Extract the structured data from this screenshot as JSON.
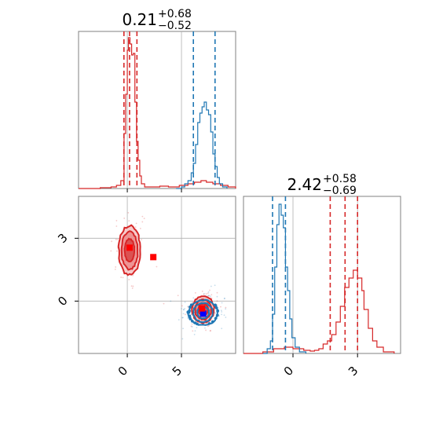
{
  "chart_data": [
    {
      "type": "histogram",
      "panel": "top-left",
      "title": {
        "value": "0.21",
        "plus": "+0.68",
        "minus": "−0.52"
      },
      "xlim": [
        -4.5,
        10
      ],
      "grid": true,
      "colors": {
        "red": "#d62728",
        "blue": "#1f77b4"
      },
      "series": [
        {
          "color": "#d62728",
          "bins": [
            [
              -4.5,
              0
            ],
            [
              -2.5,
              0.005
            ],
            [
              -1.5,
              0.01
            ],
            [
              -1.0,
              0.02
            ],
            [
              -0.6,
              0.05
            ],
            [
              -0.3,
              0.35
            ],
            [
              -0.15,
              0.6
            ],
            [
              0.0,
              0.88
            ],
            [
              0.1,
              0.96
            ],
            [
              0.25,
              0.92
            ],
            [
              0.4,
              0.85
            ],
            [
              0.55,
              0.86
            ],
            [
              0.7,
              0.55
            ],
            [
              0.85,
              0.3
            ],
            [
              1.0,
              0.18
            ],
            [
              1.15,
              0.08
            ],
            [
              1.3,
              0.03
            ],
            [
              1.6,
              0.01
            ],
            [
              2.2,
              0.01
            ],
            [
              3.0,
              0.015
            ],
            [
              3.8,
              0.01
            ],
            [
              4.8,
              0.02
            ],
            [
              5.6,
              0.03
            ],
            [
              6.2,
              0.04
            ],
            [
              6.8,
              0.05
            ],
            [
              7.3,
              0.04
            ],
            [
              7.9,
              0.03
            ],
            [
              8.6,
              0.02
            ],
            [
              9.3,
              0.01
            ],
            [
              10,
              0
            ]
          ],
          "quantiles": [
            -0.31,
            0.21,
            0.89
          ]
        },
        {
          "color": "#1f77b4",
          "bins": [
            [
              4.5,
              0
            ],
            [
              5.0,
              0.01
            ],
            [
              5.3,
              0.03
            ],
            [
              5.6,
              0.05
            ],
            [
              5.9,
              0.1
            ],
            [
              6.1,
              0.16
            ],
            [
              6.3,
              0.28
            ],
            [
              6.5,
              0.42
            ],
            [
              6.7,
              0.48
            ],
            [
              6.9,
              0.52
            ],
            [
              7.1,
              0.55
            ],
            [
              7.3,
              0.5
            ],
            [
              7.5,
              0.47
            ],
            [
              7.7,
              0.36
            ],
            [
              7.9,
              0.22
            ],
            [
              8.1,
              0.14
            ],
            [
              8.3,
              0.07
            ],
            [
              8.5,
              0.03
            ],
            [
              8.8,
              0.01
            ],
            [
              9.2,
              0
            ]
          ],
          "quantiles": [
            6.1,
            8.1
          ]
        }
      ]
    },
    {
      "type": "histogram",
      "panel": "bottom-right",
      "title": {
        "value": "2.42",
        "plus": "+0.58",
        "minus": "−0.69"
      },
      "xlim": [
        -2.3,
        5.0
      ],
      "xticks": [
        0,
        3
      ],
      "xtick_labels": [
        "0",
        "3"
      ],
      "grid": true,
      "colors": {
        "red": "#d62728",
        "blue": "#1f77b4"
      },
      "series": [
        {
          "color": "#d62728",
          "bins": [
            [
              -2.3,
              0
            ],
            [
              -1.4,
              0.01
            ],
            [
              -0.9,
              0.03
            ],
            [
              -0.4,
              0.04
            ],
            [
              0.0,
              0.03
            ],
            [
              0.5,
              0.02
            ],
            [
              0.8,
              0.015
            ],
            [
              1.0,
              0.02
            ],
            [
              1.2,
              0.03
            ],
            [
              1.4,
              0.06
            ],
            [
              1.6,
              0.08
            ],
            [
              1.8,
              0.12
            ],
            [
              2.0,
              0.2
            ],
            [
              2.2,
              0.3
            ],
            [
              2.4,
              0.42
            ],
            [
              2.6,
              0.48
            ],
            [
              2.8,
              0.53
            ],
            [
              3.0,
              0.48
            ],
            [
              3.2,
              0.4
            ],
            [
              3.3,
              0.28
            ],
            [
              3.5,
              0.16
            ],
            [
              3.7,
              0.08
            ],
            [
              3.9,
              0.04
            ],
            [
              4.2,
              0.01
            ],
            [
              4.7,
              0
            ]
          ],
          "quantiles": [
            1.73,
            2.42,
            3.0
          ]
        },
        {
          "color": "#1f77b4",
          "bins": [
            [
              -1.4,
              0
            ],
            [
              -1.2,
              0.03
            ],
            [
              -1.05,
              0.08
            ],
            [
              -0.95,
              0.25
            ],
            [
              -0.85,
              0.55
            ],
            [
              -0.75,
              0.82
            ],
            [
              -0.65,
              0.95
            ],
            [
              -0.55,
              0.88
            ],
            [
              -0.45,
              0.8
            ],
            [
              -0.35,
              0.55
            ],
            [
              -0.25,
              0.4
            ],
            [
              -0.15,
              0.22
            ],
            [
              -0.05,
              0.1
            ],
            [
              0.1,
              0.04
            ],
            [
              0.3,
              0.01
            ],
            [
              0.6,
              0
            ]
          ],
          "quantiles": [
            -0.95,
            -0.35
          ]
        }
      ]
    },
    {
      "type": "scatter",
      "panel": "bottom-left",
      "xlim": [
        -4.5,
        10
      ],
      "ylim": [
        -2.5,
        5.0
      ],
      "xticks": [
        0,
        5
      ],
      "xtick_labels": [
        "0",
        "5"
      ],
      "yticks": [
        0,
        3
      ],
      "ytick_labels": [
        "0",
        "3"
      ],
      "grid": true,
      "colors": {
        "red": "#d62728",
        "blue": "#1f77b4"
      },
      "series": [
        {
          "color": "#d62728",
          "center": [
            0.21,
            2.42
          ],
          "sigma_x": [
            0.45,
            0.75,
            1.0
          ],
          "sigma_y": [
            0.55,
            0.9,
            1.18
          ]
        },
        {
          "color": "#d62728",
          "center": [
            7.0,
            -0.4
          ],
          "sigma_x": [
            0.45,
            0.75,
            1.0
          ],
          "sigma_y": [
            0.28,
            0.48,
            0.65
          ]
        },
        {
          "color": "#1f77b4",
          "center": [
            7.0,
            -0.55
          ],
          "sigma_x": [
            0.55,
            0.9,
            1.35
          ],
          "sigma_y": [
            0.28,
            0.45,
            0.6
          ]
        }
      ],
      "markers": [
        {
          "color": "#ff0000",
          "x": 2.4,
          "y": 2.1
        },
        {
          "color": "#ff0000",
          "x": 0.21,
          "y": 2.55
        },
        {
          "color": "#0000ff",
          "x": 7.0,
          "y": -0.6
        },
        {
          "color": "#ff0000",
          "x": 6.9,
          "y": -0.35
        }
      ]
    }
  ]
}
